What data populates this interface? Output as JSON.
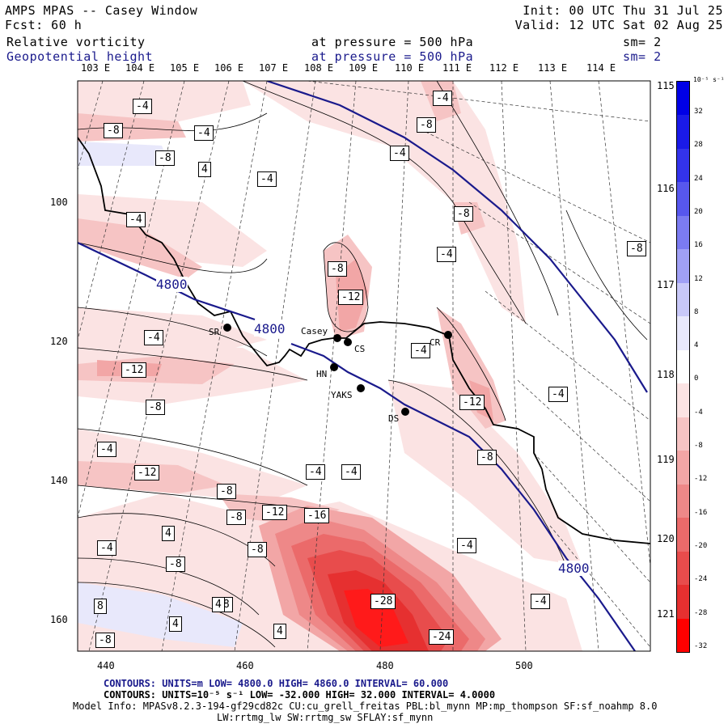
{
  "header": {
    "model_title": "AMPS MPAS -- Casey Window",
    "forecast": "Fcst:    60 h",
    "init": "Init: 00 UTC Thu 31 Jul 25",
    "valid": "Valid: 12 UTC Sat 02 Aug 25",
    "field1": {
      "name": "Relative vorticity",
      "level": "at pressure =  500 hPa",
      "smooth": "sm= 2"
    },
    "field2": {
      "name": "Geopotential height",
      "level": "at pressure =  500 hPa",
      "smooth": "sm= 2"
    }
  },
  "map": {
    "lon_labels_top": [
      "103 E",
      "104 E",
      "105 E",
      "106 E",
      "107 E",
      "108 E",
      "109 E",
      "110 E",
      "111 E",
      "112 E",
      "113 E",
      "114 E"
    ],
    "lon_labels_right": [
      "115 E",
      "116 E",
      "117 E",
      "118 E",
      "119 E",
      "120 E",
      "121 E"
    ],
    "y_ticks": [
      "100",
      "120",
      "140",
      "160"
    ],
    "x_ticks": [
      "440",
      "460",
      "480",
      "500"
    ],
    "stations": [
      {
        "id": "SR",
        "label": "SR"
      },
      {
        "id": "Casey",
        "label": "Casey"
      },
      {
        "id": "CS",
        "label": "CS"
      },
      {
        "id": "HN",
        "label": "HN"
      },
      {
        "id": "YAKS",
        "label": "YAKS"
      },
      {
        "id": "DS",
        "label": "DS"
      },
      {
        "id": "CR",
        "label": "CR"
      }
    ],
    "height_labels": [
      "4800",
      "4800",
      "4800"
    ],
    "vorticity_labels": [
      "-4",
      "-8",
      "-4",
      "-8",
      "4",
      "-4",
      "-4",
      "-8",
      "-4",
      "-4",
      "-8",
      "-4",
      "-8",
      "-8",
      "-12",
      "-4",
      "-4",
      "-12",
      "-4",
      "-8",
      "-12",
      "-4",
      "-8",
      "-12",
      "-8",
      "-4",
      "-4",
      "-8",
      "-12",
      "-16",
      "4",
      "-4",
      "-8",
      "-8",
      "-4",
      "-8",
      "-28",
      "-4",
      "8",
      "8",
      "4",
      "4",
      "-24",
      "-8",
      "4",
      "-8"
    ]
  },
  "colorbar": {
    "unit": "10⁻⁵ s⁻¹",
    "levels": [
      "32",
      "28",
      "24",
      "20",
      "16",
      "12",
      "8",
      "4",
      "0",
      "-4",
      "-8",
      "-12",
      "-16",
      "-20",
      "-24",
      "-28",
      "-32"
    ],
    "colors": [
      "#0000e6",
      "#1a1ae8",
      "#3333eb",
      "#5757ee",
      "#7b7bf1",
      "#a0a0f5",
      "#c8c8f8",
      "#e8e8fb",
      "#ffffff",
      "#fbe3e3",
      "#f6c4c4",
      "#f2a6a6",
      "#ee8888",
      "#eb6a6a",
      "#e84c4c",
      "#e63030",
      "#ff0000"
    ]
  },
  "footer": {
    "line1": "CONTOURS:  UNITS=m  LOW=  4800.0         HIGH=  4860.0       INTERVAL=  60.000",
    "line2": "CONTOURS:  UNITS=10⁻⁵ s⁻¹   LOW= -32.000        HIGH=  32.000        INTERVAL=   4.0000",
    "line3": "Model Info: MPASv8.2.3-194-gf29cd82c CU:cu_grell_freitas PBL:bl_mynn MP:mp_thompson SF:sf_noahmp 8.0",
    "line4": "LW:rrtmg_lw SW:rrtmg_sw SFLAY:sf_mynn"
  }
}
